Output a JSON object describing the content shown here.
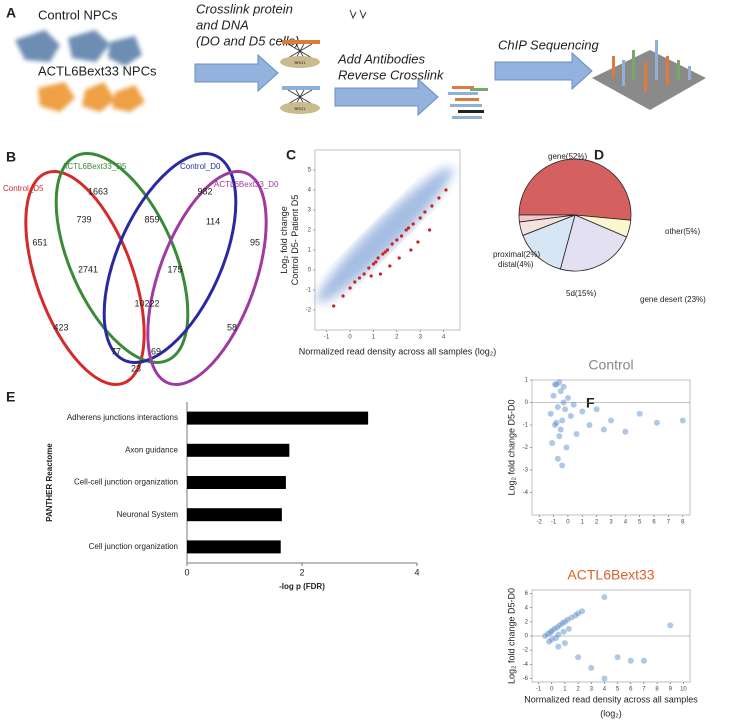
{
  "panel_labels": [
    "A",
    "B",
    "C",
    "D",
    "E",
    "F"
  ],
  "panel_a": {
    "groups": [
      "Control NPCs",
      "ACTL6Bext33 NPCs"
    ],
    "steps": [
      "Crosslink protein",
      "and DNA",
      "(DO and D5 cells)",
      "Add Antibodies",
      "Reverse Crosslink",
      "ChIP Sequencing"
    ],
    "protein_labels": [
      "BRG1",
      "BRG1"
    ]
  },
  "venn": {
    "sets": [
      {
        "name": "Control_D5",
        "color": "#d42a2a"
      },
      {
        "name": "ACTL6Bext33_D5",
        "color": "#3a8a3a"
      },
      {
        "name": "Control_D0",
        "color": "#2a2aa0"
      },
      {
        "name": "ACTL6Bext33_D0",
        "color": "#a03aa0"
      }
    ],
    "counts": [
      "1663",
      "982",
      "739",
      "859",
      "114",
      "651",
      "95",
      "2741",
      "175",
      "10222",
      "423",
      "58",
      "77",
      "69",
      "23"
    ]
  },
  "chart_data": [
    {
      "type": "scatter",
      "ylabel_lines": [
        "Log₂ fold change",
        "Control D5- Patient D5"
      ],
      "xlabel": "Normalized read density across all samples (log₂)",
      "color": "#d02020",
      "x": [
        -0.7,
        -0.3,
        0,
        0.2,
        0.4,
        0.6,
        0.8,
        1.0,
        1.1,
        1.2,
        1.4,
        1.5,
        1.6,
        1.8,
        2.0,
        2.2,
        2.4,
        2.5,
        2.7,
        3.0,
        3.2,
        3.5,
        3.8,
        4.1,
        1.3,
        1.7,
        2.1,
        2.6,
        2.9,
        0.9,
        3.4
      ],
      "y": [
        -1.8,
        -1.3,
        -0.9,
        -0.6,
        -0.4,
        -0.2,
        0.1,
        0.3,
        0.4,
        0.6,
        0.8,
        0.9,
        1.0,
        1.3,
        1.5,
        1.7,
        2.0,
        2.1,
        2.3,
        2.6,
        2.9,
        3.2,
        3.6,
        4.0,
        -0.2,
        0.2,
        0.6,
        1.0,
        1.4,
        -0.3,
        2.0
      ],
      "xlim": [
        -1.5,
        4.7
      ],
      "xticks": [
        -1,
        0,
        1,
        2,
        3,
        4
      ],
      "ylim": [
        -3,
        6
      ],
      "yticks": [
        -2,
        -1,
        0,
        1,
        2,
        3,
        4,
        5
      ]
    },
    {
      "type": "pie",
      "values": [
        52,
        5,
        23,
        15,
        4,
        2
      ],
      "value_labels": [
        "gene(52%)",
        "other(5%)",
        "gene desert (23%)",
        "5d(15%)",
        "distal(4%)",
        "proximal(2%)"
      ],
      "colors": [
        "#d46060",
        "#fbf6cf",
        "#e3e0f2",
        "#d6e6f4",
        "#f4e2dc",
        "#f3c6cc"
      ]
    },
    {
      "type": "barh",
      "categories": [
        "Adherens junctions interactions",
        "Axon guidance",
        "Cell-cell junction organization",
        "Neuronal System",
        "Cell junction organization"
      ],
      "values": [
        3.15,
        1.78,
        1.72,
        1.65,
        1.63
      ],
      "color": "#000000",
      "xlim": [
        0,
        4
      ],
      "xticks": [
        0,
        2,
        4
      ],
      "xlabel": "-log p (FDR)",
      "ylabel": "PANTHER Reactome"
    },
    {
      "type": "scatter",
      "title": "Control",
      "ylabel_lines": [
        "Log₂ fold change D5-D0"
      ],
      "color": "#4f86cc",
      "x": [
        -1.2,
        -1,
        -0.9,
        -0.8,
        -0.7,
        -0.6,
        -0.5,
        -0.4,
        -0.3,
        -0.2,
        -0.1,
        0,
        0.2,
        0.4,
        -1.1,
        -0.9,
        -0.7,
        -0.5,
        -0.3,
        -0.8,
        -0.6,
        1,
        1.5,
        2,
        2.5,
        3,
        4,
        5,
        6.2,
        8,
        -0.4,
        0.6
      ],
      "y": [
        -0.5,
        0.3,
        -1,
        0.8,
        -0.2,
        -1.5,
        0.5,
        -0.8,
        0.7,
        -0.3,
        -2,
        0.2,
        -0.6,
        -0.1,
        -1.8,
        0.8,
        -2.5,
        -1.2,
        0,
        -0.9,
        0.9,
        -0.4,
        -1,
        -0.3,
        -1.2,
        -0.8,
        -1.3,
        -0.5,
        -0.9,
        -0.8,
        -2.8,
        -1.4
      ],
      "xlim": [
        -2.5,
        8.5
      ],
      "xticks": [
        -2,
        -1,
        0,
        1,
        2,
        3,
        4,
        5,
        6,
        7,
        8
      ],
      "ylim": [
        -5,
        1
      ],
      "yticks": [
        -4,
        -3,
        -2,
        -1,
        0,
        1
      ],
      "reference_line": 0
    },
    {
      "type": "scatter",
      "title": "ACTL6Bext33",
      "ylabel_lines": [
        "Log₂ fold change D5-D0"
      ],
      "xlabel_lines": [
        "Normalized read density across all samples",
        "(log₂)"
      ],
      "color": "#4f86cc",
      "x": [
        -0.5,
        -0.3,
        -0.1,
        0,
        0.2,
        0.4,
        0.6,
        0.8,
        1,
        1.2,
        1.5,
        1.8,
        2,
        2.3,
        0,
        0.3,
        0.5,
        0.9,
        1.3,
        -0.2,
        4,
        9,
        2,
        3,
        4,
        5,
        6,
        7,
        0.5,
        1
      ],
      "y": [
        0,
        0.3,
        0.5,
        0.7,
        1,
        1.2,
        1.5,
        1.8,
        2,
        2.3,
        2.6,
        2.9,
        3.2,
        3.5,
        -0.5,
        -0.3,
        0.2,
        0.6,
        1,
        -0.8,
        5.5,
        1.5,
        -3,
        -4.5,
        -6,
        -3,
        -3.5,
        -3.5,
        -1.5,
        -1
      ],
      "xlim": [
        -1.5,
        10.5
      ],
      "xticks": [
        -1,
        0,
        1,
        2,
        3,
        4,
        5,
        6,
        7,
        8,
        9,
        10
      ],
      "ylim": [
        -6.5,
        6.5
      ],
      "yticks": [
        -6,
        -4,
        -2,
        0,
        2,
        4,
        6
      ],
      "reference_line": 0
    }
  ]
}
